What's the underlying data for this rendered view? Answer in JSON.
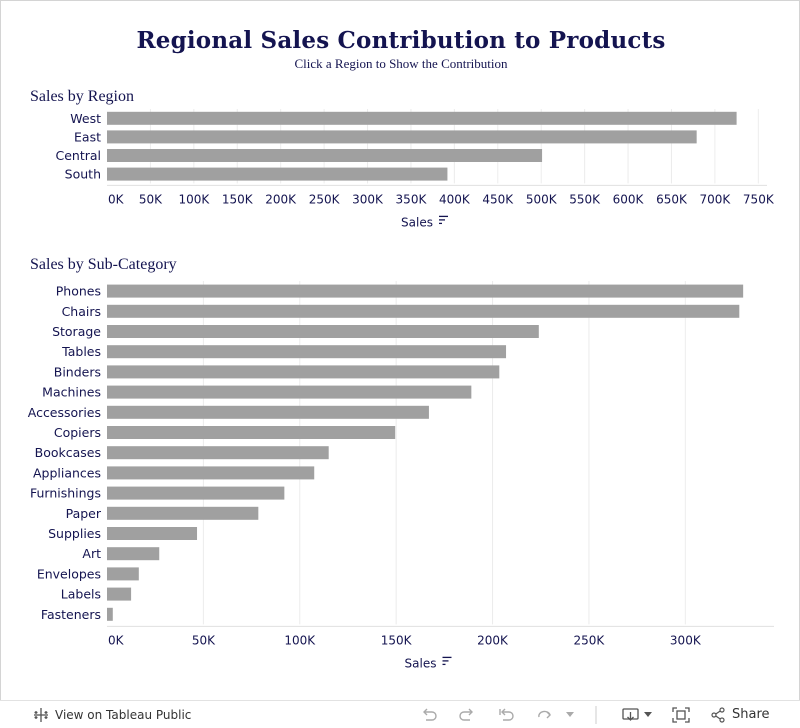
{
  "dashboard": {
    "title": "Regional Sales Contribution to Products",
    "subtitle": "Click a Region to Show the Contribution"
  },
  "colors": {
    "bar": "#a0a0a0",
    "text": "#141450",
    "grid": "#ececec"
  },
  "chart_data": [
    {
      "type": "bar",
      "orientation": "horizontal",
      "title": "Sales by Region",
      "xlabel": "Sales",
      "ylabel": "",
      "categories": [
        "West",
        "East",
        "Central",
        "South"
      ],
      "values": [
        725000,
        679000,
        501000,
        392000
      ],
      "xlim": [
        0,
        760000
      ],
      "ticks": [
        0,
        50000,
        100000,
        150000,
        200000,
        250000,
        300000,
        350000,
        400000,
        450000,
        500000,
        550000,
        600000,
        650000,
        700000,
        750000
      ],
      "tick_labels": [
        "0K",
        "50K",
        "100K",
        "150K",
        "200K",
        "250K",
        "300K",
        "350K",
        "400K",
        "450K",
        "500K",
        "550K",
        "600K",
        "650K",
        "700K",
        "750K"
      ],
      "grid": true
    },
    {
      "type": "bar",
      "orientation": "horizontal",
      "title": "Sales by Sub-Category",
      "xlabel": "Sales",
      "ylabel": "",
      "categories": [
        "Phones",
        "Chairs",
        "Storage",
        "Tables",
        "Binders",
        "Machines",
        "Accessories",
        "Copiers",
        "Bookcases",
        "Appliances",
        "Furnishings",
        "Paper",
        "Supplies",
        "Art",
        "Envelopes",
        "Labels",
        "Fasteners"
      ],
      "values": [
        330000,
        328000,
        224000,
        207000,
        203500,
        189000,
        167000,
        149500,
        115000,
        107500,
        92000,
        78500,
        46700,
        27100,
        16500,
        12500,
        3000
      ],
      "xlim": [
        0,
        346000
      ],
      "ticks": [
        0,
        50000,
        100000,
        150000,
        200000,
        250000,
        300000
      ],
      "tick_labels": [
        "0K",
        "50K",
        "100K",
        "150K",
        "200K",
        "250K",
        "300K"
      ],
      "grid": true
    }
  ],
  "toolbar": {
    "view_label": "View on Tableau Public",
    "share_label": "Share"
  }
}
